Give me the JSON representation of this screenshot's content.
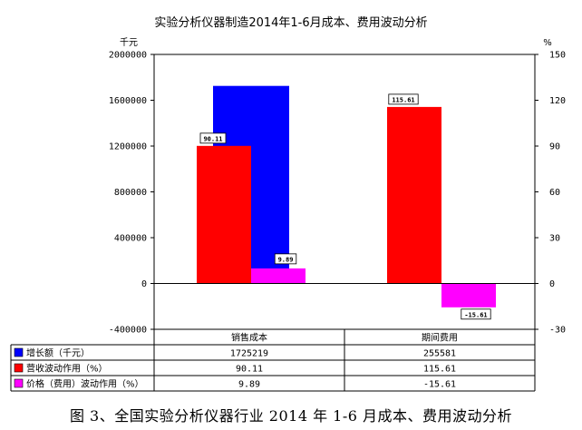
{
  "caption": "图 3、全国实验分析仪器行业 2014 年 1-6 月成本、费用波动分析",
  "chart_data": {
    "type": "bar",
    "title": "实验分析仪器制造2014年1-6月成本、费用波动分析",
    "left_unit": "千元",
    "right_unit": "%",
    "categories": [
      "销售成本",
      "期间费用"
    ],
    "y_left": {
      "range": [
        -400000,
        2000000
      ],
      "ticks": [
        2000000,
        1600000,
        1200000,
        800000,
        400000,
        0,
        -400000
      ]
    },
    "y_right": {
      "range": [
        -30,
        150
      ],
      "ticks": [
        150,
        120,
        90,
        60,
        30,
        0,
        -30
      ]
    },
    "series": [
      {
        "name": "增长额（千元）",
        "axis": "left",
        "color": "#0000ff",
        "values": [
          1725219,
          255581
        ],
        "display": [
          "1725219",
          "255581"
        ]
      },
      {
        "name": "营收波动作用（%）",
        "axis": "right",
        "color": "#ff0000",
        "values": [
          90.11,
          115.61
        ],
        "display": [
          "90.11",
          "115.61"
        ]
      },
      {
        "name": "价格（费用）波动作用（%）",
        "axis": "right",
        "color": "#ff00ff",
        "values": [
          9.89,
          -15.61
        ],
        "display": [
          "9.89",
          "-15.61"
        ]
      }
    ],
    "data_labels": [
      "90.11",
      "9.89",
      "115.61",
      "-15.61"
    ],
    "grid": false,
    "legend": "data table below chart"
  }
}
